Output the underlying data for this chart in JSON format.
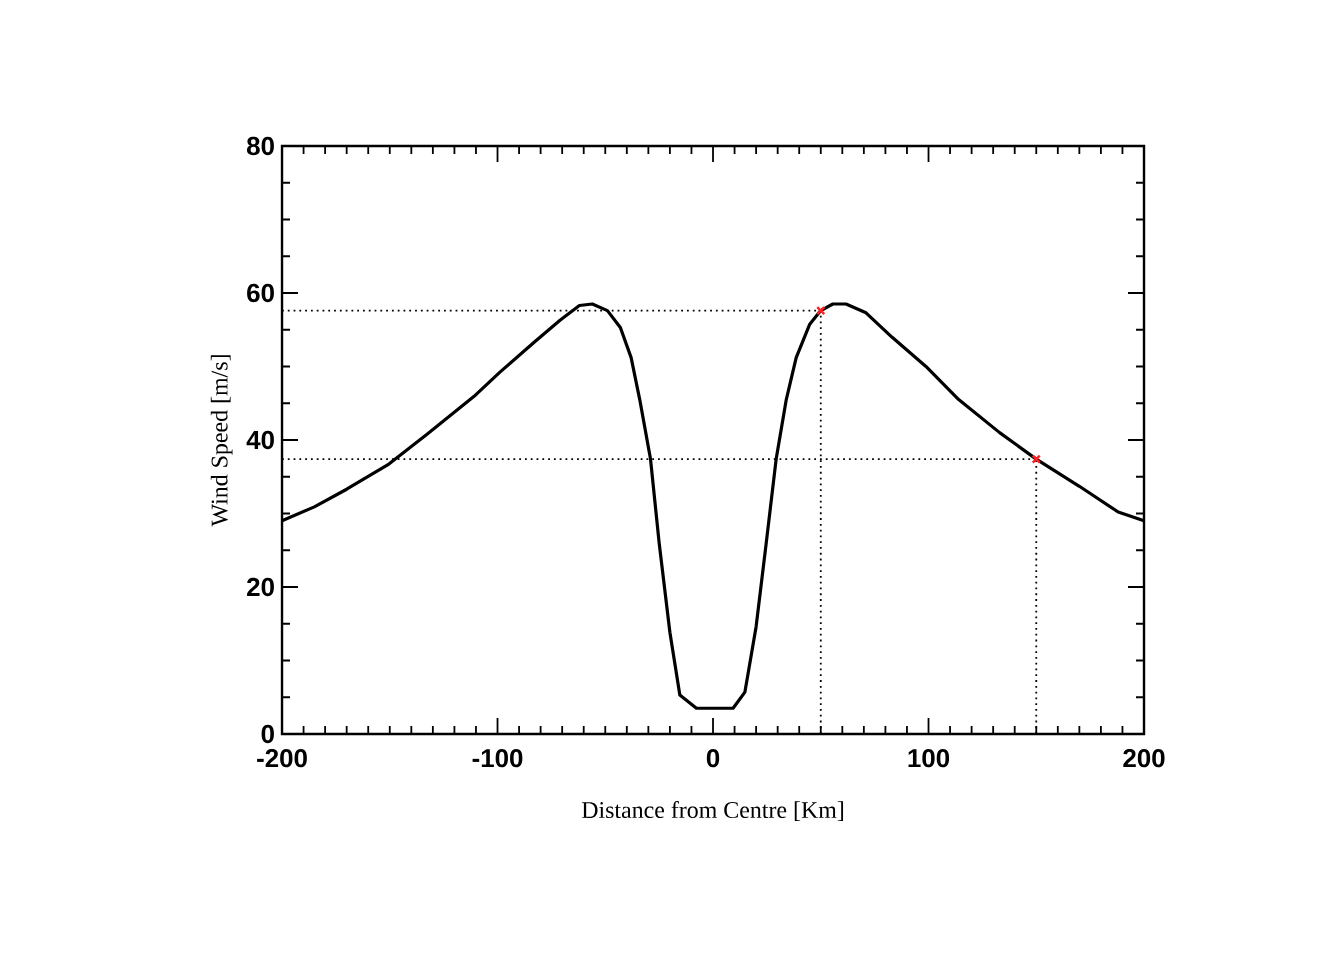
{
  "chart_data": {
    "type": "line",
    "xlabel": "Distance from Centre [Km]",
    "ylabel": "Wind Speed [m/s]",
    "xlim": [
      -200,
      200
    ],
    "ylim": [
      0,
      80
    ],
    "xticks": [
      -200,
      -100,
      0,
      100,
      200
    ],
    "yticks": [
      0,
      20,
      40,
      60,
      80
    ],
    "grid": false,
    "series": [
      {
        "color": "#000000",
        "line_style": "solid",
        "marker": "none",
        "x": [
          -200,
          -185,
          -170,
          -151,
          -133,
          -111,
          -99,
          -83,
          -71,
          -62,
          -56,
          -49,
          -43,
          -38,
          -34,
          -29,
          -25,
          -20,
          -15.4,
          -7.7,
          9.3,
          14.8,
          20,
          24.7,
          29.3,
          34,
          38.6,
          44.8,
          50,
          55.6,
          61.7,
          71,
          83,
          98.8,
          114,
          133,
          150,
          170,
          188,
          200
        ],
        "values": [
          29,
          30.9,
          33.3,
          36.6,
          40.7,
          45.9,
          49.2,
          53.3,
          56.3,
          58.3,
          58.5,
          57.6,
          55.3,
          51.2,
          45.5,
          37.4,
          26,
          13.8,
          5.3,
          3.5,
          3.5,
          5.7,
          14.6,
          26,
          37.4,
          45.5,
          51.2,
          55.7,
          57.6,
          58.5,
          58.5,
          57.3,
          54,
          50,
          45.5,
          41,
          37.4,
          33.7,
          30.2,
          29
        ]
      },
      {
        "type": "line",
        "color": "#000000",
        "line_style": "dotted",
        "marker": "none",
        "x": [
          -200,
          50
        ],
        "values": [
          57.6,
          57.6
        ]
      },
      {
        "type": "line",
        "color": "#000000",
        "line_style": "dotted",
        "marker": "none",
        "x": [
          50,
          50
        ],
        "values": [
          0,
          57.6
        ]
      },
      {
        "type": "line",
        "color": "#000000",
        "line_style": "dotted",
        "marker": "none",
        "x": [
          -200,
          150
        ],
        "values": [
          37.4,
          37.4
        ]
      },
      {
        "type": "line",
        "color": "#000000",
        "line_style": "dotted",
        "marker": "none",
        "x": [
          150,
          150
        ],
        "values": [
          0,
          37.4
        ]
      },
      {
        "type": "scatter",
        "color": "#ff2020",
        "marker": "cross",
        "x": [
          50,
          150
        ],
        "values": [
          57.6,
          37.4
        ]
      }
    ]
  }
}
